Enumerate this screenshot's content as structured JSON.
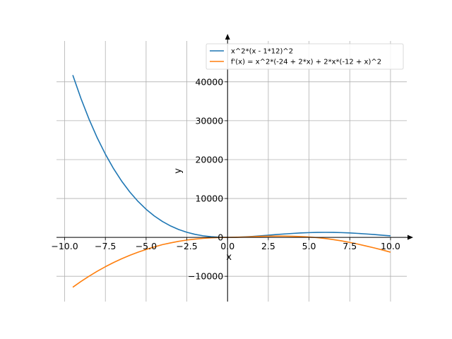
{
  "chart_data": {
    "type": "line",
    "title": "",
    "xlabel": "x",
    "ylabel": "y",
    "xlim": [
      -10.5,
      11
    ],
    "ylim": [
      -16500,
      50500
    ],
    "grid": true,
    "legend": "top-right",
    "x_ticks": [
      -10.0,
      -7.5,
      -5.0,
      -2.5,
      0.0,
      2.5,
      5.0,
      7.5,
      10.0
    ],
    "x_tick_labels": [
      "−10.0",
      "−7.5",
      "−5.0",
      "−2.5",
      "0.0",
      "2.5",
      "5.0",
      "7.5",
      "10.0"
    ],
    "y_ticks": [
      -10000,
      0,
      10000,
      20000,
      30000,
      40000
    ],
    "y_tick_labels": [
      "−10000",
      "0",
      "10000",
      "20000",
      "30000",
      "40000"
    ],
    "series": [
      {
        "name": "x^2*(x - 1*12)^2",
        "color": "#1f77b4",
        "x": [
          -9.5,
          -9.0,
          -8.5,
          -8.0,
          -7.5,
          -7.0,
          -6.5,
          -6.0,
          -5.5,
          -5.0,
          -4.5,
          -4.0,
          -3.5,
          -3.0,
          -2.5,
          -2.0,
          -1.5,
          -1.0,
          -0.5,
          0.0,
          0.5,
          1.0,
          1.5,
          2.0,
          2.5,
          3.0,
          3.5,
          4.0,
          4.5,
          5.0,
          5.5,
          6.0,
          6.5,
          7.0,
          7.5,
          8.0,
          8.5,
          9.0,
          9.5,
          10.0
        ],
        "y": [
          41718,
          35721,
          30363,
          25600,
          21389,
          17689,
          14460,
          11664,
          9263,
          7225,
          5513,
          4096,
          2943,
          2025,
          1314,
          784,
          410,
          169,
          39,
          0,
          30,
          121,
          248,
          400,
          564,
          729,
          885,
          1024,
          1139,
          1225,
          1278,
          1296,
          1278,
          1225,
          1139,
          1024,
          885,
          729,
          564,
          400
        ]
      },
      {
        "name": "f'(x) = x^2*(-24 + 2*x) + 2*x*(-12 + x)^2",
        "color": "#ff7f0e",
        "x": [
          -9.5,
          -9.0,
          -8.5,
          -8.0,
          -7.5,
          -7.0,
          -6.5,
          -6.0,
          -5.5,
          -5.0,
          -4.5,
          -4.0,
          -3.5,
          -3.0,
          -2.5,
          -2.0,
          -1.5,
          -1.0,
          -0.5,
          0.0,
          0.5,
          1.0,
          1.5,
          2.0,
          2.5,
          3.0,
          3.5,
          4.0,
          4.5,
          5.0,
          5.5,
          6.0,
          6.5,
          7.0,
          7.5,
          8.0,
          8.5,
          9.0,
          9.5,
          10.0
        ],
        "y": [
          -12806,
          -11340,
          -9979,
          -8704,
          -7538,
          -6468,
          -5493,
          -4608,
          -3806,
          -3100,
          -2457,
          -1856,
          -1414,
          -1008,
          -680,
          -448,
          -252,
          -104,
          -27,
          0,
          28,
          88,
          162,
          256,
          300,
          324,
          322,
          288,
          216,
          100,
          -66,
          -288,
          -570,
          -896,
          -1290,
          -1728,
          -2209,
          -2700,
          -3230,
          -3800
        ]
      }
    ]
  }
}
